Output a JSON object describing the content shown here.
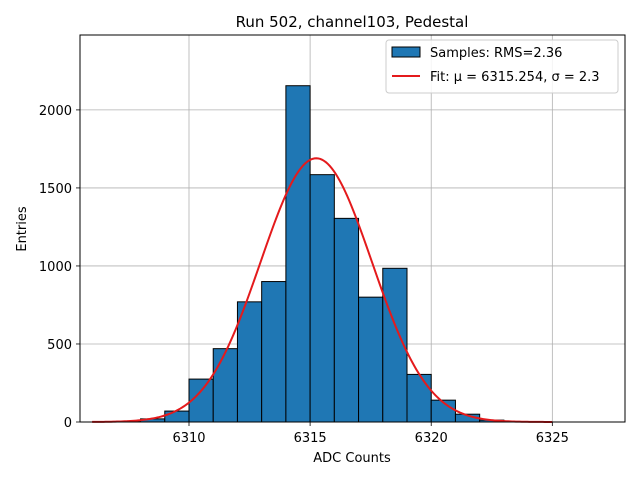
{
  "chart_data": {
    "type": "bar",
    "title": "Run 502, channel103, Pedestal",
    "xlabel": "ADC Counts",
    "ylabel": "Entries",
    "xlim": [
      6305.5,
      6328.0
    ],
    "ylim": [
      0,
      2480
    ],
    "xticks": [
      6310,
      6315,
      6320,
      6325
    ],
    "yticks": [
      0,
      500,
      1000,
      1500,
      2000
    ],
    "grid": true,
    "bin_width": 1,
    "bins": [
      {
        "left": 6307,
        "value": 3
      },
      {
        "left": 6308,
        "value": 20
      },
      {
        "left": 6309,
        "value": 70
      },
      {
        "left": 6310,
        "value": 275
      },
      {
        "left": 6311,
        "value": 470
      },
      {
        "left": 6312,
        "value": 770
      },
      {
        "left": 6313,
        "value": 900
      },
      {
        "left": 6314,
        "value": 2155
      },
      {
        "left": 6315,
        "value": 1585
      },
      {
        "left": 6316,
        "value": 1305
      },
      {
        "left": 6317,
        "value": 800
      },
      {
        "left": 6318,
        "value": 985
      },
      {
        "left": 6319,
        "value": 305
      },
      {
        "left": 6320,
        "value": 140
      },
      {
        "left": 6321,
        "value": 50
      },
      {
        "left": 6322,
        "value": 12
      },
      {
        "left": 6323,
        "value": 2
      }
    ],
    "fit": {
      "type": "gaussian",
      "mu": 6315.254,
      "sigma": 2.3,
      "amplitude": 1690,
      "x_range": [
        6306,
        6325
      ]
    },
    "legend": {
      "position": "upper right",
      "entries": [
        {
          "label": "Samples: RMS=2.36",
          "kind": "patch"
        },
        {
          "label": "Fit: μ = 6315.254, σ = 2.3",
          "kind": "line"
        }
      ]
    },
    "colors": {
      "bar_fill": "#1f77b4",
      "bar_edge": "#000000",
      "fit_line": "#e41a1c",
      "grid": "#b0b0b0"
    }
  }
}
